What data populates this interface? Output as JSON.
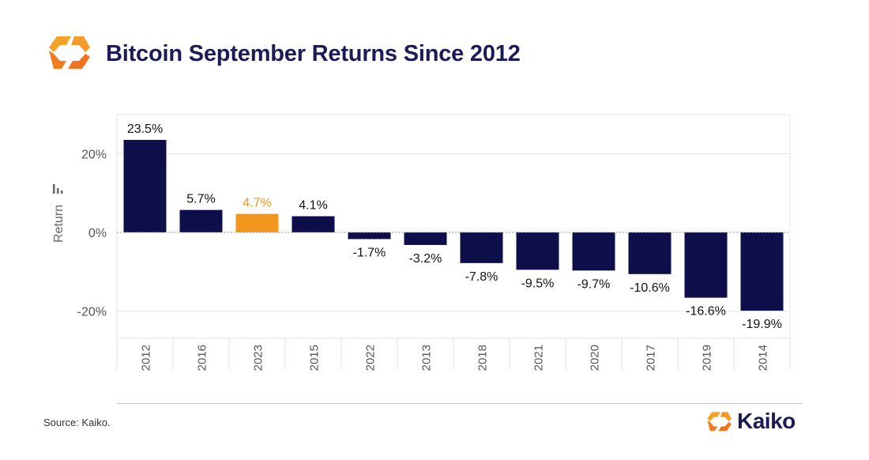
{
  "title": "Bitcoin September Returns Since 2012",
  "source": "Source: Kaiko.",
  "brand": {
    "name": "Kaiko",
    "logo_icon": "kaiko-logo-icon"
  },
  "colors": {
    "bar": "#0e0e4b",
    "highlight": "#f2961e",
    "title": "#1b1b58"
  },
  "chart_data": {
    "type": "bar",
    "categories": [
      "2012",
      "2016",
      "2023",
      "2015",
      "2022",
      "2013",
      "2018",
      "2021",
      "2020",
      "2017",
      "2019",
      "2014"
    ],
    "values": [
      23.5,
      5.7,
      4.7,
      4.1,
      -1.7,
      -3.2,
      -7.8,
      -9.5,
      -9.7,
      -10.6,
      -16.6,
      -19.9
    ],
    "data_labels": [
      "23.5%",
      "5.7%",
      "4.7%",
      "4.1%",
      "-1.7%",
      "-3.2%",
      "-7.8%",
      "-9.5%",
      "-9.7%",
      "-10.6%",
      "-16.6%",
      "-19.9%"
    ],
    "highlight_category": "2023",
    "ylabel": "Return",
    "yticks": [
      20,
      0,
      -20
    ],
    "ytick_labels": [
      "20%",
      "0%",
      "-20%"
    ],
    "ylim": [
      -27,
      30
    ],
    "grid": true
  }
}
